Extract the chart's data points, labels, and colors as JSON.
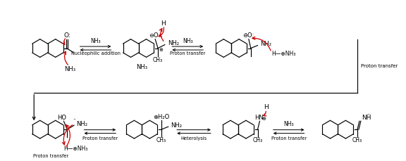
{
  "bg_color": "#ffffff",
  "line_color": "#000000",
  "arrow_color": "#cc0000",
  "fig_width": 5.76,
  "fig_height": 2.29,
  "dpi": 100,
  "labels": {
    "nucleophilic_addition": "Nucleophilic addition",
    "proton_transfer": "Proton transfer",
    "heterolysis": "Heterolysis"
  }
}
